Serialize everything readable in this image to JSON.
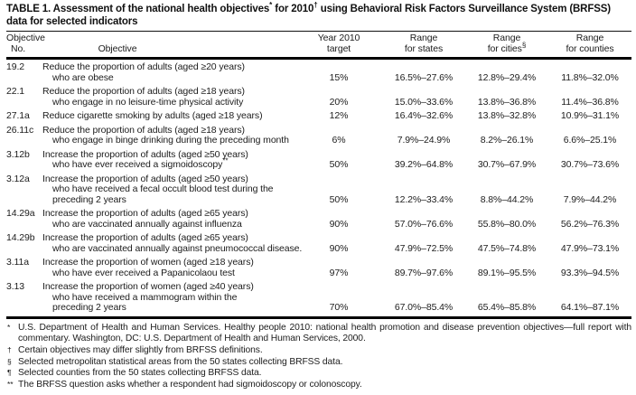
{
  "table_title": {
    "seg1": "TABLE 1. Assessment of the national health objectives",
    "sup1": "*",
    "seg2": " for 2010",
    "sup2": "†",
    "seg3": " using Behavioral Risk Factors Surveillance System (BRFSS) data for selected indicators"
  },
  "header": {
    "col_no_l1": "Objective",
    "col_no_l2": "No.",
    "col_objective": "Objective",
    "col_target_l1": "Year 2010",
    "col_target_l2": "target",
    "col_states_l1": "Range",
    "col_states_l2": "for states",
    "col_cities_l1": "Range",
    "col_cities_l2": "for cities",
    "col_cities_sup": "§",
    "col_counties_l1": "Range",
    "col_counties_l2": "for counties"
  },
  "rows": [
    {
      "no": "19.2",
      "lines": [
        "Reduce the proportion of adults (aged ≥20 years)",
        "who are obese"
      ],
      "target": "15%",
      "states": "16.5%–27.6%",
      "cities": "12.8%–29.4%",
      "counties": "11.8%–32.0%"
    },
    {
      "no": "22.1",
      "lines": [
        "Reduce the proportion of adults (aged ≥18 years)",
        "who engage in no leisure-time physical activity"
      ],
      "target": "20%",
      "states": "15.0%–33.6%",
      "cities": "13.8%–36.8%",
      "counties": "11.4%–36.8%"
    },
    {
      "no": "27.1a",
      "lines": [
        "Reduce cigarette smoking by adults (aged ≥18 years)"
      ],
      "target": "12%",
      "states": "16.4%–32.6%",
      "cities": "13.8%–32.8%",
      "counties": "10.9%–31.1%"
    },
    {
      "no": "26.11c",
      "lines": [
        "Reduce the proportion of adults (aged ≥18 years)",
        "who engage in binge drinking during the preceding month"
      ],
      "target": "6%",
      "states": "7.9%–24.9%",
      "cities": "8.2%–26.1%",
      "counties": "6.6%–25.1%"
    },
    {
      "no": "3.12b",
      "lines": [
        "Increase the proportion of adults (aged ≥50 years)",
        {
          "text": "who have ever received a sigmoidoscopy",
          "sup": "**"
        }
      ],
      "target": "50%",
      "states": "39.2%–64.8%",
      "cities": "30.7%–67.9%",
      "counties": "30.7%–73.6%"
    },
    {
      "no": "3.12a",
      "lines": [
        "Increase the proportion of adults (aged ≥50 years)",
        "who have received a fecal occult blood test during the",
        "preceding 2 years"
      ],
      "target": "50%",
      "states": "12.2%–33.4%",
      "cities": "8.8%–44.2%",
      "counties": "7.9%–44.2%"
    },
    {
      "no": "14.29a",
      "lines": [
        "Increase the proportion of adults (aged ≥65 years)",
        "who are vaccinated annually against influenza"
      ],
      "target": "90%",
      "states": "57.0%–76.6%",
      "cities": "55.8%–80.0%",
      "counties": "56.2%–76.3%"
    },
    {
      "no": "14.29b",
      "lines": [
        "Increase the proportion of adults (aged ≥65 years)",
        "who are vaccinated annually against pneumococcal disease."
      ],
      "target": "90%",
      "states": "47.9%–72.5%",
      "cities": "47.5%–74.8%",
      "counties": "47.9%–73.1%"
    },
    {
      "no": "3.11a",
      "lines": [
        "Increase the proportion of women (aged ≥18 years)",
        "who have ever received a Papanicolaou test"
      ],
      "target": "97%",
      "states": "89.7%–97.6%",
      "cities": "89.1%–95.5%",
      "counties": "93.3%–94.5%"
    },
    {
      "no": "3.13",
      "lines": [
        "Increase the proportion of women (aged ≥40 years)",
        "who have received a mammogram within the",
        "preceding 2 years"
      ],
      "target": "70%",
      "states": "67.0%–85.4%",
      "cities": "65.4%–85.8%",
      "counties": "64.1%–87.1%"
    }
  ],
  "footnotes": [
    {
      "symbol": "*",
      "text": "U.S. Department of Health and Human Services. Healthy people 2010: national health promotion and disease prevention objectives—full report with commentary. Washington, DC: U.S. Department of Health and Human Services, 2000."
    },
    {
      "symbol": "†",
      "text": "Certain objectives may differ slightly from BRFSS definitions."
    },
    {
      "symbol": "§",
      "text": "Selected metropolitan statistical areas from the 50 states collecting BRFSS data."
    },
    {
      "symbol": "¶",
      "text": "Selected counties from the 50 states collecting BRFSS data."
    },
    {
      "symbol": "**",
      "text": "The BRFSS question asks whether a respondent had sigmoidoscopy or colonoscopy."
    }
  ]
}
